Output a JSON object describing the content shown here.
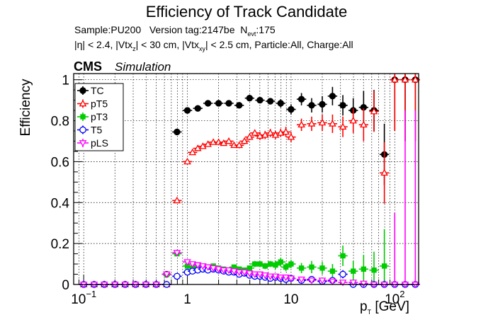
{
  "chart_data": {
    "type": "scatter",
    "title": "Efficiency of Track Candidate",
    "subtitle": {
      "sample_label": "Sample:PU200",
      "version_label": "Version tag:2147be",
      "nevt_symbol": "N",
      "nevt_sub": "evt",
      "nevt_value": ":175",
      "cuts": [
        {
          "text": "|η| < 2.4, |Vtx"
        },
        {
          "sub": "z"
        },
        {
          "text": "| < 30 cm, |Vtx"
        },
        {
          "sub": "xy"
        },
        {
          "text": "| < 2.5 cm, Particle:All, Charge:All"
        }
      ]
    },
    "experiment_label": "CMS",
    "simulation_label": "Simulation",
    "xlabel": {
      "main": "p",
      "sub": "T",
      "unit": " [GeV]"
    },
    "ylabel": "Efficiency",
    "xscale": "log",
    "xlim": [
      0.08,
      170
    ],
    "ylim": [
      0,
      1.03
    ],
    "x_ticks": [
      {
        "v": 0.1,
        "t": "10",
        "sup": "−1"
      },
      {
        "v": 1,
        "t": "1"
      },
      {
        "v": 10,
        "t": "10"
      },
      {
        "v": 100,
        "t": "10",
        "sup": "2"
      }
    ],
    "y_ticks": [
      0,
      0.2,
      0.4,
      0.6,
      0.8,
      1
    ],
    "y_tick_labels": [
      "0",
      "0.2",
      "0.4",
      "0.6",
      "0.8",
      "1"
    ],
    "grid": true,
    "legend_position": "top-left",
    "series": [
      {
        "name": "TC",
        "color": "#000000",
        "marker": "filled-circle",
        "x": [
          0.1,
          0.126,
          0.158,
          0.2,
          0.251,
          0.316,
          0.398,
          0.501,
          0.631,
          0.794,
          1.0,
          1.26,
          1.58,
          2.0,
          2.51,
          3.16,
          3.98,
          5.01,
          6.31,
          7.94,
          10.0,
          12.6,
          15.8,
          20.0,
          25.1,
          31.6,
          39.8,
          50.1,
          63.1,
          79.4,
          100,
          126,
          158
        ],
        "y": [
          0,
          0,
          0,
          0,
          0,
          0,
          0,
          0,
          0.05,
          0.745,
          0.85,
          0.86,
          0.885,
          0.885,
          0.885,
          0.875,
          0.91,
          0.9,
          0.895,
          0.885,
          0.855,
          0.905,
          0.875,
          0.88,
          0.92,
          0.875,
          0.85,
          0.865,
          0.85,
          0.635,
          1,
          1,
          1
        ],
        "yerr": [
          0,
          0,
          0,
          0,
          0,
          0,
          0,
          0,
          0.01,
          0.01,
          0.01,
          0.01,
          0.01,
          0.01,
          0.01,
          0.01,
          0.015,
          0.015,
          0.015,
          0.02,
          0.025,
          0.03,
          0.035,
          0.04,
          0.045,
          0.05,
          0.06,
          0.08,
          0.1,
          0.15,
          0.25,
          0.3,
          0.3
        ]
      },
      {
        "name": "pT5",
        "color": "#ff0000",
        "marker": "open-triangle",
        "x": [
          0.1,
          0.126,
          0.158,
          0.2,
          0.251,
          0.316,
          0.398,
          0.501,
          0.631,
          0.794,
          1.0,
          1.12,
          1.26,
          1.41,
          1.58,
          1.78,
          2.0,
          2.24,
          2.51,
          2.82,
          3.16,
          3.55,
          3.98,
          4.47,
          5.01,
          5.62,
          6.31,
          7.08,
          7.94,
          8.91,
          10.0,
          12.6,
          15.8,
          20.0,
          25.1,
          31.6,
          39.8,
          50.1,
          63.1,
          79.4,
          100,
          126,
          158
        ],
        "y": [
          0,
          0,
          0,
          0,
          0,
          0,
          0,
          0,
          0,
          0.41,
          0.6,
          0.645,
          0.665,
          0.675,
          0.685,
          0.695,
          0.695,
          0.69,
          0.7,
          0.68,
          0.68,
          0.7,
          0.72,
          0.74,
          0.725,
          0.73,
          0.74,
          0.73,
          0.74,
          0.745,
          0.72,
          0.78,
          0.785,
          0.79,
          0.785,
          0.77,
          0.8,
          0.78,
          0.845,
          0.545,
          1,
          1,
          1
        ],
        "yerr": [
          0,
          0,
          0,
          0,
          0,
          0,
          0,
          0,
          0,
          0.01,
          0.01,
          0.01,
          0.01,
          0.01,
          0.01,
          0.01,
          0.01,
          0.01,
          0.01,
          0.01,
          0.015,
          0.015,
          0.015,
          0.015,
          0.02,
          0.02,
          0.02,
          0.02,
          0.02,
          0.025,
          0.025,
          0.03,
          0.035,
          0.04,
          0.045,
          0.05,
          0.06,
          0.08,
          0.1,
          0.15,
          0.25,
          0.3,
          0.3
        ]
      },
      {
        "name": "pT3",
        "color": "#00cc00",
        "marker": "filled-square",
        "x": [
          0.1,
          0.126,
          0.158,
          0.2,
          0.251,
          0.316,
          0.398,
          0.501,
          0.631,
          0.794,
          1.0,
          1.12,
          1.26,
          1.41,
          1.58,
          1.78,
          2.0,
          2.24,
          2.51,
          2.82,
          3.16,
          3.55,
          3.98,
          4.47,
          5.01,
          5.62,
          6.31,
          7.08,
          7.94,
          8.91,
          10.0,
          12.6,
          15.8,
          20.0,
          25.1,
          31.6,
          39.8,
          50.1,
          63.1,
          79.4,
          100,
          126,
          158
        ],
        "y": [
          0,
          0,
          0,
          0,
          0,
          0,
          0,
          0,
          0.05,
          0.15,
          0.09,
          0.08,
          0.08,
          0.075,
          0.08,
          0.09,
          0.08,
          0.075,
          0.07,
          0.085,
          0.075,
          0.07,
          0.08,
          0.1,
          0.1,
          0.09,
          0.1,
          0.095,
          0.11,
          0.085,
          0.1,
          0.08,
          0.085,
          0.08,
          0.065,
          0.14,
          0.065,
          0.075,
          0.07,
          0.09,
          0,
          0,
          0
        ],
        "yerr": [
          0,
          0,
          0,
          0,
          0,
          0,
          0,
          0,
          0.01,
          0.01,
          0.01,
          0.01,
          0.01,
          0.01,
          0.01,
          0.01,
          0.01,
          0.01,
          0.01,
          0.01,
          0.01,
          0.01,
          0.01,
          0.015,
          0.015,
          0.015,
          0.015,
          0.02,
          0.02,
          0.02,
          0.02,
          0.025,
          0.03,
          0.03,
          0.035,
          0.05,
          0.05,
          0.07,
          0.09,
          0.18,
          0,
          0,
          0
        ]
      },
      {
        "name": "T5",
        "color": "#0000ff",
        "marker": "open-circle",
        "x": [
          0.1,
          0.126,
          0.158,
          0.2,
          0.251,
          0.316,
          0.398,
          0.501,
          0.631,
          0.794,
          1.0,
          1.12,
          1.26,
          1.41,
          1.58,
          1.78,
          2.0,
          2.24,
          2.51,
          2.82,
          3.16,
          3.55,
          3.98,
          4.47,
          5.01,
          5.62,
          6.31,
          7.08,
          7.94,
          8.91,
          10.0,
          12.6,
          15.8,
          20.0,
          25.1,
          31.6,
          39.8,
          50.1,
          63.1,
          79.4,
          100,
          126,
          158
        ],
        "y": [
          0,
          0,
          0,
          0,
          0,
          0,
          0,
          0,
          0,
          0.04,
          0.06,
          0.065,
          0.07,
          0.075,
          0.07,
          0.075,
          0.07,
          0.065,
          0.06,
          0.06,
          0.05,
          0.055,
          0.045,
          0.04,
          0.04,
          0.035,
          0.03,
          0.035,
          0.03,
          0.025,
          0.03,
          0.02,
          0.025,
          0.015,
          0.02,
          0.05,
          0.0,
          0.0,
          0.0,
          0.0,
          0,
          0,
          0
        ],
        "yerr": [
          0,
          0,
          0,
          0,
          0,
          0,
          0,
          0,
          0,
          0.01,
          0.01,
          0.01,
          0.01,
          0.01,
          0.01,
          0.01,
          0.01,
          0.01,
          0.01,
          0.01,
          0.01,
          0.01,
          0.01,
          0.01,
          0.01,
          0.01,
          0.01,
          0.01,
          0.01,
          0.01,
          0.01,
          0.01,
          0.01,
          0.01,
          0.01,
          0.02,
          0,
          0,
          0,
          0,
          0,
          0,
          0
        ]
      },
      {
        "name": "pLS",
        "color": "#ff00ff",
        "marker": "open-triangle-down",
        "x": [
          0.1,
          0.126,
          0.158,
          0.2,
          0.251,
          0.316,
          0.398,
          0.501,
          0.631,
          0.794,
          1.0,
          1.12,
          1.26,
          1.41,
          1.58,
          1.78,
          2.0,
          2.24,
          2.51,
          2.82,
          3.16,
          3.55,
          3.98,
          4.47,
          5.01,
          5.62,
          6.31,
          7.08,
          7.94,
          8.91,
          10.0,
          12.6,
          15.8,
          20.0,
          25.1,
          31.6,
          39.8,
          50.1,
          63.1,
          79.4,
          100,
          126,
          158
        ],
        "y": [
          0,
          0,
          0,
          0,
          0,
          0,
          0,
          0,
          0.05,
          0.155,
          0.11,
          0.1,
          0.095,
          0.09,
          0.085,
          0.08,
          0.075,
          0.07,
          0.07,
          0.065,
          0.06,
          0.06,
          0.055,
          0.05,
          0.05,
          0.045,
          0.04,
          0.04,
          0.035,
          0.035,
          0.03,
          0.025,
          0.02,
          0.02,
          0.015,
          0.01,
          0.01,
          0.005,
          0,
          0,
          0,
          0,
          0
        ],
        "yerr": [
          0,
          0,
          0,
          0,
          0,
          0,
          0,
          0,
          0.01,
          0.015,
          0.01,
          0.01,
          0.01,
          0.01,
          0.01,
          0.01,
          0.01,
          0.01,
          0.01,
          0.01,
          0.01,
          0.01,
          0.01,
          0.01,
          0.01,
          0.01,
          0.01,
          0.01,
          0.01,
          0.01,
          0.01,
          0.01,
          0.01,
          0.01,
          0.01,
          0.01,
          0.01,
          0.01,
          0,
          0,
          0.35,
          0.85,
          0.85
        ]
      }
    ]
  }
}
